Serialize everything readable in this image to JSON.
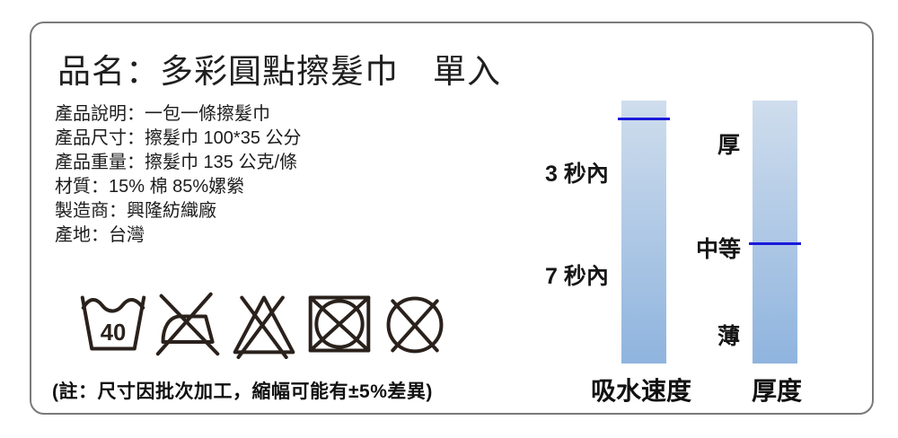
{
  "panel": {
    "title": "品名：多彩圓點擦髮巾　單入"
  },
  "details": {
    "lines": [
      "產品說明：一包一條擦髮巾",
      "產品尺寸：擦髮巾 100*35  公分",
      "產品重量：擦髮巾 135 公克/條",
      "材質：15% 棉  85%嫘縈",
      "製造商：興隆紡織廠",
      "產地：台灣"
    ]
  },
  "care": {
    "wash_temp": "40",
    "symbols": [
      "machine-wash-40",
      "do-not-iron",
      "do-not-bleach",
      "do-not-tumble-dry",
      "do-not-dry-clean"
    ]
  },
  "note": "(註：尺寸因批次加工，縮幅可能有±5%差異)",
  "chart_data": [
    {
      "type": "scale-bar",
      "title": "吸水速度",
      "orientation": "vertical",
      "scale_labels": [
        "3 秒內",
        "7 秒內"
      ],
      "indicator_pct_from_top": 6.5,
      "bar_gradient": [
        "#cfdded",
        "#8fb4de"
      ],
      "indicator_color": "#1a1ad9"
    },
    {
      "type": "scale-bar",
      "title": "厚度",
      "orientation": "vertical",
      "scale_labels": [
        "厚",
        "中等",
        "薄"
      ],
      "indicator_pct_from_top": 53.9,
      "bar_gradient": [
        "#cfdded",
        "#8fb4de"
      ],
      "indicator_color": "#1a1ad9"
    }
  ],
  "colors": {
    "card_border": "#7a7a7a",
    "symbol_ink": "#2a211c",
    "text": "#1c1c1c"
  }
}
